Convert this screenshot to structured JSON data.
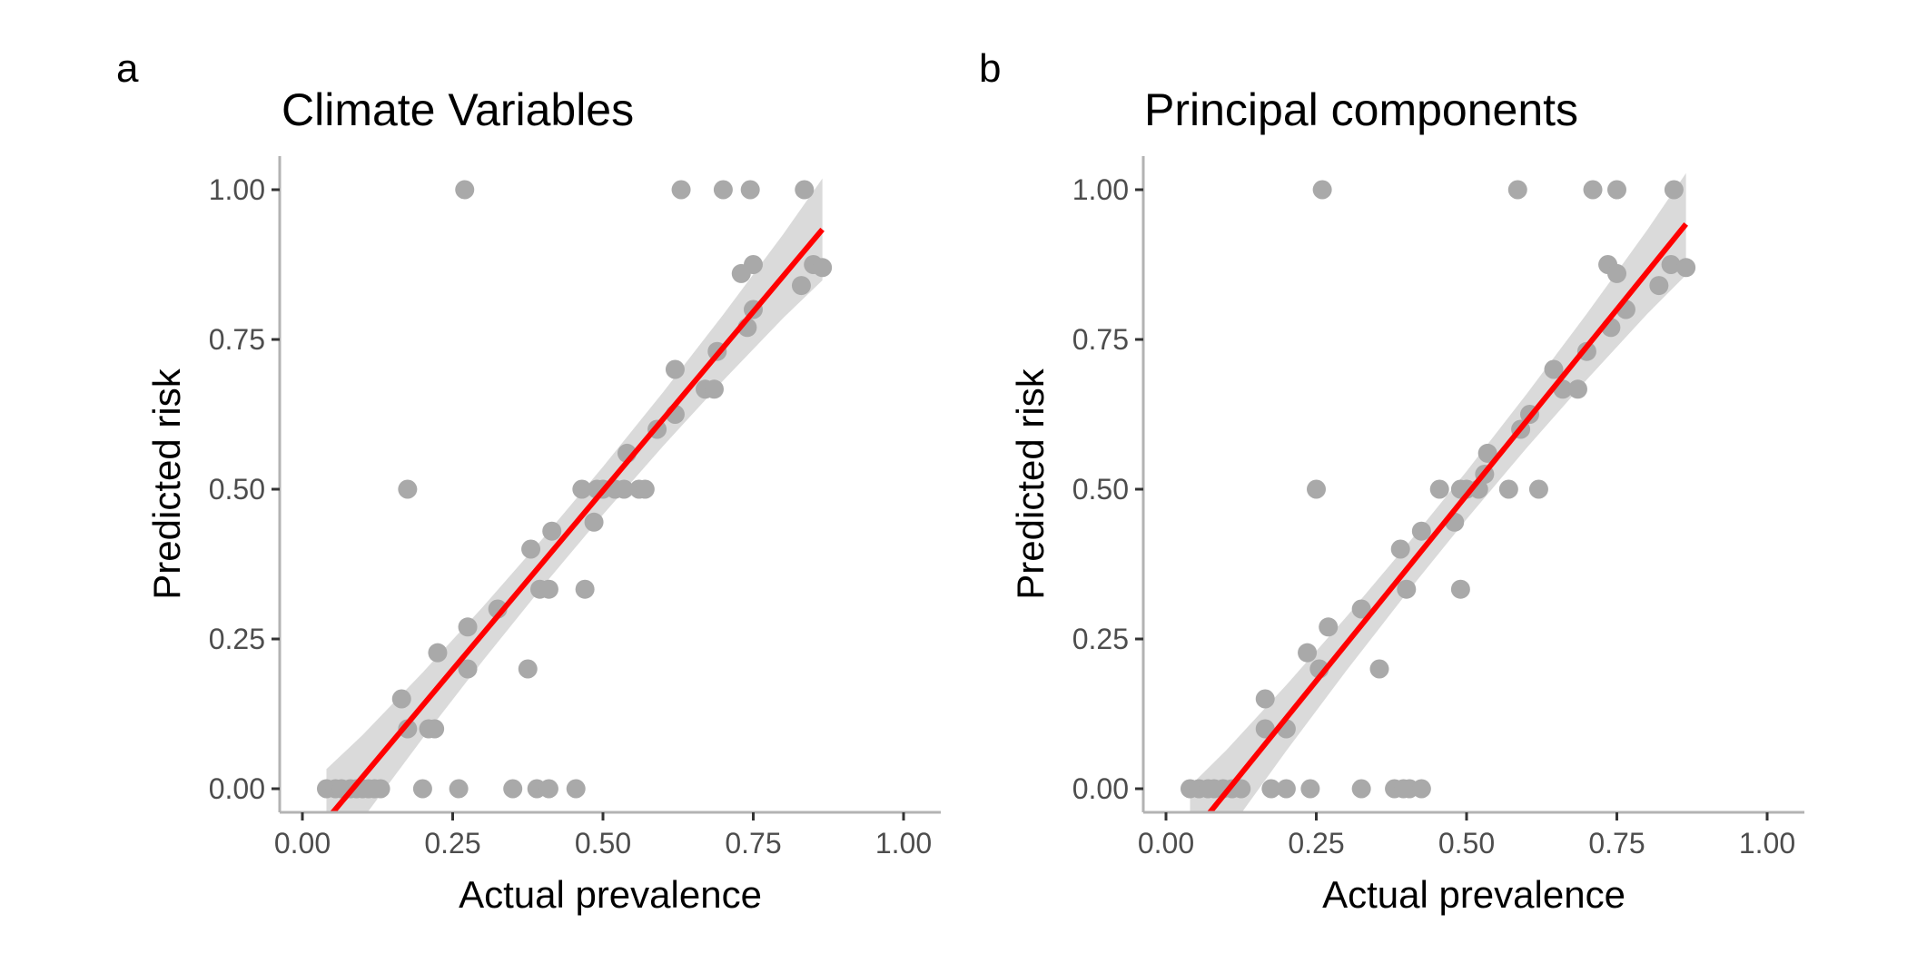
{
  "chart_data": [
    {
      "type": "scatter",
      "panel_label": "a",
      "title": "Climate Variables",
      "xlabel": "Actual prevalence",
      "ylabel": "Predicted risk",
      "xlim": [
        0,
        1
      ],
      "ylim": [
        0,
        1
      ],
      "xticks": [
        "0.00",
        "0.25",
        "0.50",
        "0.75",
        "1.00"
      ],
      "yticks": [
        "0.00",
        "0.25",
        "0.50",
        "0.75",
        "1.00"
      ],
      "point_color": "#a9a9a9",
      "fit_color": "#ff0000",
      "band_color": "#d3d3d3",
      "grid": false,
      "points": [
        [
          0.04,
          0.0
        ],
        [
          0.055,
          0.0
        ],
        [
          0.065,
          0.0
        ],
        [
          0.08,
          0.0
        ],
        [
          0.09,
          0.0
        ],
        [
          0.1,
          0.0
        ],
        [
          0.11,
          0.0
        ],
        [
          0.12,
          0.0
        ],
        [
          0.13,
          0.0
        ],
        [
          0.2,
          0.0
        ],
        [
          0.26,
          0.0
        ],
        [
          0.35,
          0.0
        ],
        [
          0.39,
          0.0
        ],
        [
          0.41,
          0.0
        ],
        [
          0.455,
          0.0
        ],
        [
          0.165,
          0.15
        ],
        [
          0.175,
          0.1
        ],
        [
          0.21,
          0.1
        ],
        [
          0.22,
          0.1
        ],
        [
          0.375,
          0.2
        ],
        [
          0.225,
          0.227
        ],
        [
          0.275,
          0.2
        ],
        [
          0.275,
          0.27
        ],
        [
          0.325,
          0.3
        ],
        [
          0.395,
          0.333
        ],
        [
          0.41,
          0.333
        ],
        [
          0.47,
          0.333
        ],
        [
          0.38,
          0.4
        ],
        [
          0.415,
          0.43
        ],
        [
          0.485,
          0.445
        ],
        [
          0.465,
          0.5
        ],
        [
          0.49,
          0.5
        ],
        [
          0.5,
          0.5
        ],
        [
          0.52,
          0.5
        ],
        [
          0.535,
          0.5
        ],
        [
          0.56,
          0.5
        ],
        [
          0.57,
          0.5
        ],
        [
          0.54,
          0.56
        ],
        [
          0.59,
          0.6
        ],
        [
          0.62,
          0.625
        ],
        [
          0.62,
          0.7
        ],
        [
          0.67,
          0.667
        ],
        [
          0.685,
          0.667
        ],
        [
          0.69,
          0.73
        ],
        [
          0.74,
          0.77
        ],
        [
          0.75,
          0.8
        ],
        [
          0.73,
          0.86
        ],
        [
          0.75,
          0.875
        ],
        [
          0.83,
          0.84
        ],
        [
          0.85,
          0.875
        ],
        [
          0.865,
          0.87
        ],
        [
          0.175,
          0.5
        ],
        [
          0.27,
          1.0
        ],
        [
          0.63,
          1.0
        ],
        [
          0.7,
          1.0
        ],
        [
          0.745,
          1.0
        ],
        [
          0.835,
          1.0
        ]
      ],
      "fit": {
        "slope": 1.195,
        "intercept": -0.1,
        "x_range": [
          0.04,
          0.865
        ]
      },
      "band": {
        "x": [
          0.04,
          0.1,
          0.2,
          0.3,
          0.4,
          0.5,
          0.6,
          0.7,
          0.8,
          0.865
        ],
        "halfwidth": [
          0.085,
          0.07,
          0.055,
          0.045,
          0.04,
          0.04,
          0.045,
          0.055,
          0.07,
          0.085
        ]
      }
    },
    {
      "type": "scatter",
      "panel_label": "b",
      "title": "Principal components",
      "xlabel": "Actual prevalence",
      "ylabel": "Predicted risk",
      "xlim": [
        0,
        1
      ],
      "ylim": [
        0,
        1
      ],
      "xticks": [
        "0.00",
        "0.25",
        "0.50",
        "0.75",
        "1.00"
      ],
      "yticks": [
        "0.00",
        "0.25",
        "0.50",
        "0.75",
        "1.00"
      ],
      "point_color": "#a9a9a9",
      "fit_color": "#ff0000",
      "band_color": "#d3d3d3",
      "grid": false,
      "points": [
        [
          0.04,
          0.0
        ],
        [
          0.055,
          0.0
        ],
        [
          0.07,
          0.0
        ],
        [
          0.08,
          0.0
        ],
        [
          0.095,
          0.0
        ],
        [
          0.11,
          0.0
        ],
        [
          0.125,
          0.0
        ],
        [
          0.175,
          0.0
        ],
        [
          0.2,
          0.0
        ],
        [
          0.24,
          0.0
        ],
        [
          0.325,
          0.0
        ],
        [
          0.38,
          0.0
        ],
        [
          0.395,
          0.0
        ],
        [
          0.405,
          0.0
        ],
        [
          0.425,
          0.0
        ],
        [
          0.165,
          0.15
        ],
        [
          0.165,
          0.1
        ],
        [
          0.2,
          0.1
        ],
        [
          0.355,
          0.2
        ],
        [
          0.235,
          0.227
        ],
        [
          0.255,
          0.2
        ],
        [
          0.27,
          0.27
        ],
        [
          0.325,
          0.3
        ],
        [
          0.39,
          0.4
        ],
        [
          0.4,
          0.333
        ],
        [
          0.49,
          0.333
        ],
        [
          0.425,
          0.43
        ],
        [
          0.48,
          0.445
        ],
        [
          0.455,
          0.5
        ],
        [
          0.49,
          0.5
        ],
        [
          0.5,
          0.5
        ],
        [
          0.52,
          0.5
        ],
        [
          0.53,
          0.525
        ],
        [
          0.535,
          0.56
        ],
        [
          0.57,
          0.5
        ],
        [
          0.62,
          0.5
        ],
        [
          0.59,
          0.6
        ],
        [
          0.605,
          0.625
        ],
        [
          0.645,
          0.7
        ],
        [
          0.66,
          0.667
        ],
        [
          0.685,
          0.667
        ],
        [
          0.7,
          0.73
        ],
        [
          0.74,
          0.77
        ],
        [
          0.765,
          0.8
        ],
        [
          0.735,
          0.875
        ],
        [
          0.75,
          0.86
        ],
        [
          0.82,
          0.84
        ],
        [
          0.84,
          0.875
        ],
        [
          0.865,
          0.87
        ],
        [
          0.25,
          0.5
        ],
        [
          0.26,
          1.0
        ],
        [
          0.585,
          1.0
        ],
        [
          0.71,
          1.0
        ],
        [
          0.75,
          1.0
        ],
        [
          0.845,
          1.0
        ]
      ],
      "fit": {
        "slope": 1.24,
        "intercept": -0.13,
        "x_range": [
          0.04,
          0.865
        ]
      },
      "band": {
        "x": [
          0.04,
          0.1,
          0.2,
          0.3,
          0.4,
          0.5,
          0.6,
          0.7,
          0.8,
          0.865
        ],
        "halfwidth": [
          0.085,
          0.07,
          0.055,
          0.045,
          0.04,
          0.04,
          0.045,
          0.055,
          0.07,
          0.085
        ]
      }
    }
  ]
}
